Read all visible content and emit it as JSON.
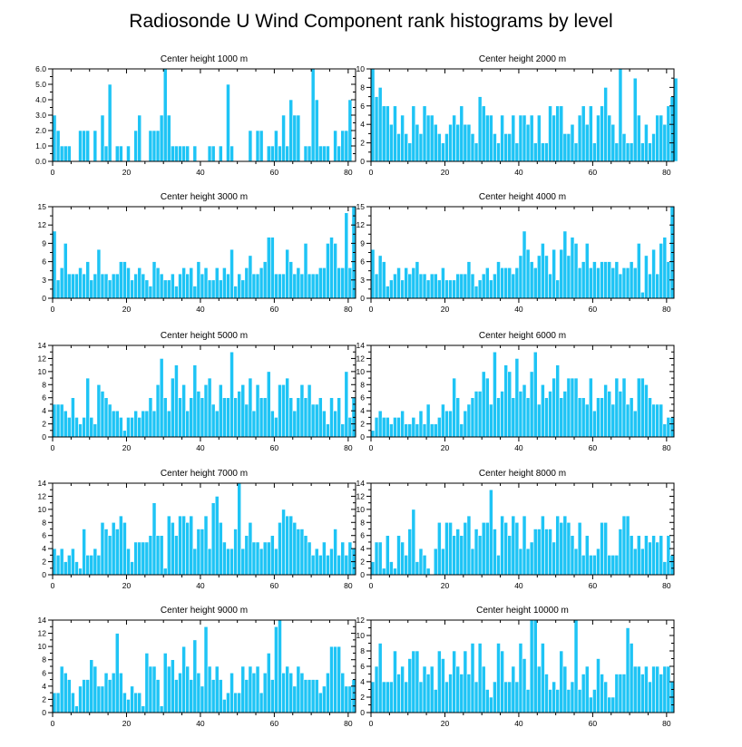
{
  "figure": {
    "title": "Radiosonde U Wind Component rank histograms by level"
  },
  "colors": {
    "bar": "#1ec4f5",
    "bar_edge": "#ffffff",
    "axis": "#000000"
  },
  "chart_data": [
    {
      "type": "bar",
      "title": "Center height 1000 m",
      "xlim": [
        0,
        82
      ],
      "ylim": [
        0,
        6
      ],
      "xticks": [
        0,
        20,
        40,
        60,
        80
      ],
      "yticks": [
        0,
        1,
        2,
        3,
        4,
        5,
        6
      ],
      "ytick_labels": [
        "0.0",
        "1.0",
        "2.0",
        "3.0",
        "4.0",
        "5.0",
        "6.0"
      ],
      "values": [
        3,
        2,
        1,
        1,
        1,
        0,
        0,
        2,
        2,
        2,
        0,
        2,
        0,
        3,
        1,
        5,
        0,
        1,
        1,
        0,
        1,
        0,
        2,
        3,
        0,
        0,
        2,
        2,
        2,
        3,
        6,
        3,
        1,
        1,
        1,
        1,
        1,
        0,
        1,
        0,
        0,
        0,
        1,
        1,
        0,
        1,
        0,
        5,
        1,
        0,
        0,
        0,
        0,
        2,
        0,
        2,
        2,
        0,
        1,
        1,
        2,
        1,
        3,
        1,
        4,
        3,
        3,
        0,
        1,
        1,
        6,
        4,
        1,
        1,
        1,
        0,
        2,
        1,
        2,
        2,
        4
      ]
    },
    {
      "type": "bar",
      "title": "Center height 2000 m",
      "xlim": [
        0,
        82
      ],
      "ylim": [
        0,
        10
      ],
      "xticks": [
        0,
        20,
        40,
        60,
        80
      ],
      "yticks": [
        0,
        2,
        4,
        6,
        8,
        10
      ],
      "ytick_labels": [
        "0",
        "2",
        "4",
        "6",
        "8",
        "10"
      ],
      "values": [
        10,
        7,
        8,
        6,
        6,
        4,
        6,
        3,
        5,
        3,
        2,
        6,
        4,
        3,
        6,
        5,
        5,
        4,
        3,
        2,
        3,
        4,
        5,
        4,
        6,
        4,
        4,
        3,
        2,
        7,
        6,
        5,
        5,
        3,
        2,
        5,
        3,
        3,
        5,
        2,
        5,
        5,
        4,
        5,
        2,
        5,
        2,
        2,
        6,
        5,
        6,
        6,
        3,
        3,
        4,
        2,
        5,
        6,
        4,
        6,
        2,
        5,
        6,
        8,
        5,
        4,
        2,
        10,
        3,
        2,
        2,
        9,
        5,
        2,
        4,
        2,
        3,
        5,
        5,
        4,
        6,
        7,
        9
      ]
    },
    {
      "type": "bar",
      "title": "Center height 3000 m",
      "xlim": [
        0,
        82
      ],
      "ylim": [
        0,
        15
      ],
      "xticks": [
        0,
        20,
        40,
        60,
        80
      ],
      "yticks": [
        0,
        3,
        6,
        9,
        12,
        15
      ],
      "ytick_labels": [
        "0",
        "3",
        "6",
        "9",
        "12",
        "15"
      ],
      "values": [
        11,
        3,
        5,
        9,
        4,
        4,
        4,
        5,
        4,
        6,
        3,
        4,
        8,
        4,
        4,
        3,
        4,
        4,
        6,
        6,
        5,
        3,
        4,
        5,
        4,
        3,
        2,
        6,
        5,
        4,
        3,
        3,
        4,
        2,
        4,
        5,
        4,
        5,
        2,
        6,
        4,
        5,
        3,
        3,
        5,
        3,
        5,
        4,
        8,
        2,
        4,
        3,
        5,
        7,
        4,
        4,
        5,
        6,
        10,
        10,
        4,
        4,
        4,
        8,
        6,
        4,
        5,
        4,
        9,
        4,
        4,
        4,
        5,
        5,
        9,
        10,
        9,
        5,
        5,
        14,
        5,
        15
      ]
    },
    {
      "type": "bar",
      "title": "Center height 4000 m",
      "xlim": [
        0,
        82
      ],
      "ylim": [
        0,
        15
      ],
      "xticks": [
        0,
        20,
        40,
        60,
        80
      ],
      "yticks": [
        0,
        3,
        6,
        9,
        12,
        15
      ],
      "ytick_labels": [
        "0",
        "3",
        "6",
        "9",
        "12",
        "15"
      ],
      "values": [
        8,
        4,
        7,
        6,
        2,
        3,
        4,
        5,
        3,
        5,
        4,
        5,
        6,
        4,
        4,
        3,
        4,
        4,
        3,
        5,
        3,
        3,
        3,
        4,
        4,
        4,
        6,
        4,
        2,
        3,
        4,
        5,
        3,
        4,
        6,
        5,
        5,
        5,
        4,
        5,
        7,
        11,
        8,
        6,
        5,
        7,
        9,
        7,
        4,
        8,
        3,
        8,
        11,
        7,
        10,
        9,
        5,
        6,
        9,
        5,
        6,
        5,
        6,
        6,
        6,
        5,
        6,
        4,
        5,
        5,
        6,
        5,
        9,
        1,
        7,
        4,
        8,
        4,
        9,
        10,
        6,
        15
      ]
    },
    {
      "type": "bar",
      "title": "Center height 5000 m",
      "xlim": [
        0,
        82
      ],
      "ylim": [
        0,
        14
      ],
      "xticks": [
        0,
        20,
        40,
        60,
        80
      ],
      "yticks": [
        0,
        2,
        4,
        6,
        8,
        10,
        12,
        14
      ],
      "ytick_labels": [
        "0",
        "2",
        "4",
        "6",
        "8",
        "10",
        "12",
        "14"
      ],
      "values": [
        5,
        5,
        5,
        4,
        3,
        6,
        3,
        2,
        3,
        9,
        3,
        2,
        8,
        7,
        6,
        5,
        4,
        4,
        3,
        1,
        3,
        3,
        4,
        3,
        4,
        4,
        6,
        4,
        8,
        12,
        6,
        4,
        9,
        11,
        6,
        8,
        4,
        6,
        11,
        7,
        6,
        8,
        9,
        5,
        4,
        8,
        6,
        6,
        13,
        6,
        7,
        8,
        5,
        9,
        4,
        8,
        6,
        6,
        10,
        4,
        3,
        8,
        8,
        9,
        6,
        4,
        6,
        8,
        6,
        8,
        5,
        5,
        6,
        4,
        2,
        6,
        4,
        6,
        2,
        10,
        3,
        6
      ]
    },
    {
      "type": "bar",
      "title": "Center height 6000 m",
      "xlim": [
        0,
        82
      ],
      "ylim": [
        0,
        14
      ],
      "xticks": [
        0,
        20,
        40,
        60,
        80
      ],
      "yticks": [
        0,
        2,
        4,
        6,
        8,
        10,
        12,
        14
      ],
      "ytick_labels": [
        "0",
        "2",
        "4",
        "6",
        "8",
        "10",
        "12",
        "14"
      ],
      "values": [
        1,
        3,
        4,
        3,
        3,
        2,
        3,
        3,
        4,
        2,
        2,
        3,
        2,
        4,
        2,
        5,
        2,
        2,
        3,
        5,
        4,
        4,
        9,
        6,
        2,
        4,
        5,
        6,
        7,
        7,
        10,
        9,
        5,
        13,
        6,
        7,
        11,
        10,
        6,
        12,
        7,
        8,
        6,
        10,
        13,
        5,
        8,
        6,
        7,
        9,
        11,
        6,
        7,
        9,
        9,
        9,
        6,
        6,
        5,
        9,
        4,
        6,
        6,
        8,
        7,
        5,
        9,
        7,
        9,
        5,
        6,
        4,
        9,
        9,
        8,
        6,
        5,
        5,
        5,
        2,
        3,
        3
      ]
    },
    {
      "type": "bar",
      "title": "Center height 7000 m",
      "xlim": [
        0,
        82
      ],
      "ylim": [
        0,
        14
      ],
      "xticks": [
        0,
        20,
        40,
        60,
        80
      ],
      "yticks": [
        0,
        2,
        4,
        6,
        8,
        10,
        12,
        14
      ],
      "ytick_labels": [
        "0",
        "2",
        "4",
        "6",
        "8",
        "10",
        "12",
        "14"
      ],
      "values": [
        4,
        3,
        4,
        2,
        3,
        4,
        2,
        1,
        7,
        3,
        3,
        4,
        3,
        8,
        7,
        6,
        8,
        7,
        9,
        8,
        4,
        2,
        5,
        5,
        5,
        5,
        6,
        11,
        6,
        6,
        1,
        9,
        8,
        6,
        9,
        9,
        8,
        9,
        4,
        7,
        7,
        9,
        4,
        11,
        12,
        8,
        5,
        4,
        4,
        7,
        14,
        4,
        6,
        8,
        5,
        5,
        4,
        5,
        5,
        6,
        4,
        8,
        10,
        9,
        9,
        8,
        7,
        7,
        6,
        5,
        3,
        4,
        3,
        5,
        3,
        4,
        7,
        3,
        5,
        3,
        5,
        4
      ]
    },
    {
      "type": "bar",
      "title": "Center height 8000 m",
      "xlim": [
        0,
        82
      ],
      "ylim": [
        0,
        14
      ],
      "xticks": [
        0,
        20,
        40,
        60,
        80
      ],
      "yticks": [
        0,
        2,
        4,
        6,
        8,
        10,
        12,
        14
      ],
      "ytick_labels": [
        "0",
        "2",
        "4",
        "6",
        "8",
        "10",
        "12",
        "14"
      ],
      "values": [
        2,
        5,
        5,
        1,
        6,
        2,
        1,
        6,
        5,
        3,
        7,
        10,
        2,
        4,
        3,
        1,
        0,
        4,
        8,
        4,
        8,
        8,
        6,
        7,
        6,
        8,
        9,
        4,
        7,
        6,
        8,
        8,
        13,
        7,
        3,
        9,
        8,
        6,
        9,
        8,
        4,
        9,
        4,
        5,
        7,
        7,
        9,
        7,
        7,
        5,
        9,
        8,
        9,
        8,
        6,
        4,
        8,
        3,
        6,
        3,
        3,
        4,
        8,
        8,
        3,
        3,
        3,
        7,
        9,
        9,
        6,
        4,
        6,
        4,
        6,
        5,
        6,
        5,
        6,
        2,
        6,
        3
      ]
    },
    {
      "type": "bar",
      "title": "Center height 9000 m",
      "xlim": [
        0,
        82
      ],
      "ylim": [
        0,
        14
      ],
      "xticks": [
        0,
        20,
        40,
        60,
        80
      ],
      "yticks": [
        0,
        2,
        4,
        6,
        8,
        10,
        12,
        14
      ],
      "ytick_labels": [
        "0",
        "2",
        "4",
        "6",
        "8",
        "10",
        "12",
        "14"
      ],
      "values": [
        3,
        3,
        7,
        6,
        5,
        3,
        1,
        4,
        5,
        5,
        8,
        7,
        4,
        4,
        6,
        5,
        6,
        12,
        6,
        3,
        2,
        4,
        3,
        3,
        1,
        9,
        7,
        7,
        5,
        1,
        9,
        7,
        8,
        5,
        6,
        10,
        7,
        5,
        11,
        6,
        4,
        13,
        7,
        5,
        7,
        5,
        2,
        3,
        6,
        3,
        3,
        7,
        5,
        7,
        6,
        7,
        3,
        6,
        9,
        5,
        13,
        14,
        6,
        7,
        6,
        4,
        7,
        6,
        5,
        5,
        5,
        5,
        3,
        4,
        6,
        10,
        10,
        10,
        6,
        4,
        4,
        5
      ]
    },
    {
      "type": "bar",
      "title": "Center height 10000 m",
      "xlim": [
        0,
        82
      ],
      "ylim": [
        0,
        12
      ],
      "xticks": [
        0,
        20,
        40,
        60,
        80
      ],
      "yticks": [
        0,
        2,
        4,
        6,
        8,
        10,
        12
      ],
      "ytick_labels": [
        "0",
        "2",
        "4",
        "6",
        "8",
        "10",
        "12"
      ],
      "values": [
        4,
        6,
        9,
        4,
        4,
        4,
        8,
        5,
        6,
        4,
        7,
        8,
        8,
        4,
        6,
        5,
        6,
        3,
        8,
        7,
        4,
        5,
        8,
        6,
        5,
        8,
        5,
        9,
        4,
        9,
        6,
        3,
        2,
        4,
        9,
        8,
        4,
        4,
        6,
        4,
        9,
        7,
        3,
        12,
        12,
        6,
        9,
        5,
        3,
        4,
        3,
        8,
        6,
        3,
        4,
        12,
        3,
        5,
        6,
        2,
        3,
        7,
        5,
        4,
        2,
        2,
        5,
        5,
        5,
        11,
        9,
        6,
        6,
        5,
        6,
        4,
        6,
        6,
        5,
        6,
        6,
        4
      ]
    }
  ]
}
